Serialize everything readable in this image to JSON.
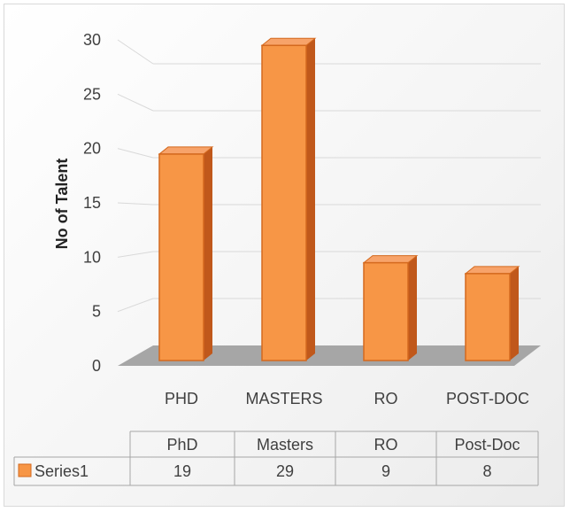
{
  "chart_data": {
    "type": "bar",
    "style": "3d-column",
    "categories": [
      "PHD",
      "MASTERS",
      "RO",
      "POST-DOC"
    ],
    "series": [
      {
        "name": "Series1",
        "values": [
          19,
          29,
          9,
          8
        ]
      }
    ],
    "ylabel": "No of Talent",
    "ylim": [
      0,
      30
    ],
    "yticks": [
      "0",
      "5",
      "10",
      "15",
      "20",
      "25",
      "30"
    ],
    "grid": true,
    "data_table": {
      "headers": [
        "PhD",
        "Masters",
        "RO",
        "Post-Doc"
      ],
      "rows": [
        {
          "label": "Series1",
          "values": [
            "19",
            "29",
            "9",
            "8"
          ]
        }
      ]
    },
    "colors": {
      "bar_front": "#f79646",
      "bar_side": "#c0581b",
      "bar_top": "#f7a36a",
      "bar_edge": "#d4691e",
      "floor": "#a6a6a6",
      "grid": "#d9d9d9"
    }
  }
}
